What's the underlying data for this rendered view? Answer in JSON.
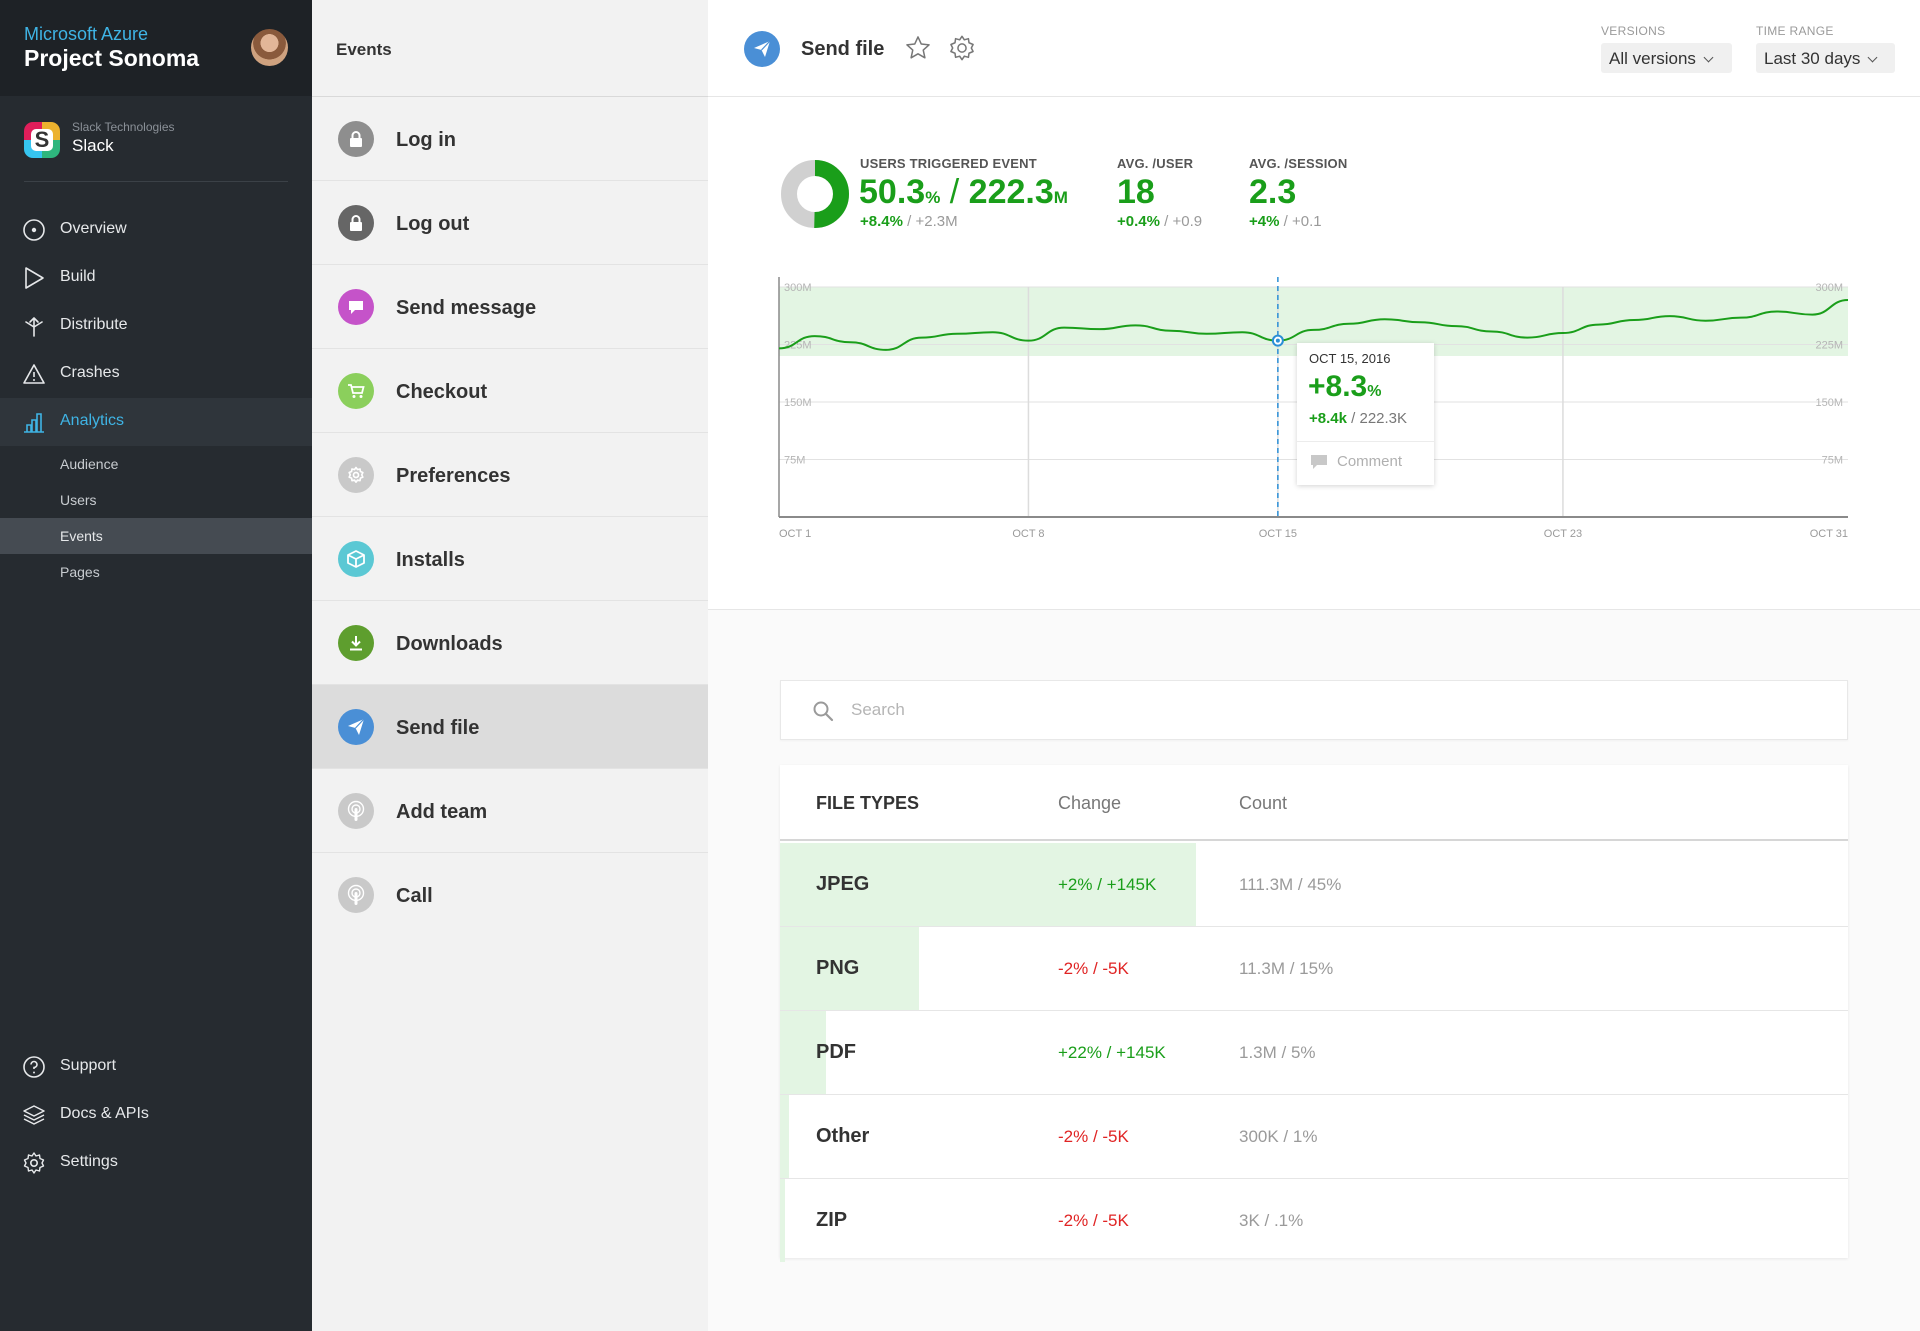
{
  "sidebar": {
    "brand_sub": "Microsoft Azure",
    "brand_title": "Project Sonoma",
    "app": {
      "org": "Slack Technologies",
      "name": "Slack"
    },
    "nav": [
      {
        "label": "Overview",
        "icon": "overview-icon"
      },
      {
        "label": "Build",
        "icon": "build-icon"
      },
      {
        "label": "Distribute",
        "icon": "distribute-icon"
      },
      {
        "label": "Crashes",
        "icon": "crashes-icon"
      },
      {
        "label": "Analytics",
        "icon": "analytics-icon",
        "active": true
      }
    ],
    "analytics_sub": [
      {
        "label": "Audience"
      },
      {
        "label": "Users"
      },
      {
        "label": "Events",
        "active": true
      },
      {
        "label": "Pages"
      }
    ],
    "footer": [
      {
        "label": "Support",
        "icon": "support-icon"
      },
      {
        "label": "Docs & APIs",
        "icon": "docs-icon"
      },
      {
        "label": "Settings",
        "icon": "settings-icon"
      }
    ],
    "accent_color": "#3fb4e5"
  },
  "events": {
    "title": "Events",
    "items": [
      {
        "label": "Log in",
        "icon": "lock-icon",
        "color": "#8e8e8e"
      },
      {
        "label": "Log out",
        "icon": "lock-icon",
        "color": "#666666"
      },
      {
        "label": "Send message",
        "icon": "message-icon",
        "color": "#c553c9"
      },
      {
        "label": "Checkout",
        "icon": "cart-icon",
        "color": "#8bcf5c"
      },
      {
        "label": "Preferences",
        "icon": "gear-icon",
        "color": "#c9c9c9"
      },
      {
        "label": "Installs",
        "icon": "box-icon",
        "color": "#5bc8d4"
      },
      {
        "label": "Downloads",
        "icon": "download-icon",
        "color": "#5e9e2e"
      },
      {
        "label": "Send file",
        "icon": "send-icon",
        "color": "#4a8fd6",
        "selected": true
      },
      {
        "label": "Add team",
        "icon": "touch-icon",
        "color": "#c9c9c9"
      },
      {
        "label": "Call",
        "icon": "touch-icon",
        "color": "#c9c9c9"
      }
    ]
  },
  "header": {
    "title": "Send file",
    "versions_label": "VERSIONS",
    "versions_value": "All versions",
    "time_label": "TIME RANGE",
    "time_value": "Last 30 days"
  },
  "stats": {
    "users_triggered": {
      "label": "USERS TRIGGERED EVENT",
      "pct": "50.3",
      "pct_unit": "%",
      "slash": "/",
      "total": "222.3",
      "total_unit": "M",
      "delta_up": "+8.4%",
      "delta_sep": "/",
      "delta_rest": "+2.3M",
      "ring_fraction": 0.503
    },
    "avg_user": {
      "label": "AVG. /USER",
      "value": "18",
      "delta_up": "+0.4%",
      "delta_sep": "/",
      "delta_rest": "+0.9"
    },
    "avg_session": {
      "label": "AVG. /SESSION",
      "value": "2.3",
      "delta_up": "+4%",
      "delta_sep": "/",
      "delta_rest": "+0.1"
    }
  },
  "chart_data": {
    "type": "line",
    "y_ticks": [
      "300M",
      "225M",
      "150M",
      "75M"
    ],
    "y_values": [
      300,
      225,
      150,
      75
    ],
    "ylim": [
      0,
      300
    ],
    "x_ticks": [
      "OCT 1",
      "OCT 8",
      "OCT 15",
      "OCT 23",
      "OCT 31"
    ],
    "x_tick_days": [
      1,
      8,
      15,
      23,
      31
    ],
    "band": [
      210,
      300
    ],
    "series": [
      {
        "x": [
          1,
          2,
          3,
          4,
          5,
          6,
          7,
          8,
          9,
          10,
          11,
          12,
          13,
          14,
          15,
          16,
          17,
          18,
          19,
          20,
          21,
          22,
          23,
          24,
          25,
          26,
          27,
          28,
          29,
          30,
          31
        ],
        "y": [
          220,
          236,
          228,
          218,
          234,
          239,
          241,
          230,
          247,
          245,
          250,
          243,
          239,
          241,
          230,
          244,
          252,
          258,
          254,
          249,
          242,
          234,
          240,
          251,
          257,
          262,
          256,
          260,
          268,
          264,
          283
        ]
      }
    ],
    "highlight": {
      "x": 15,
      "date": "OCT 15, 2016",
      "pct": "+8.3",
      "pct_unit": "%",
      "delta_up": "+8.4k",
      "delta_sep": "/",
      "delta_rest": "222.3K",
      "comment_label": "Comment"
    },
    "line_color": "#1a9e1a",
    "band_color": "#e3f5e3"
  },
  "search": {
    "placeholder": "Search"
  },
  "file_types": {
    "headers": [
      "FILE TYPES",
      "Change",
      "Count"
    ],
    "rows": [
      {
        "name": "JPEG",
        "change": "+2% / +145K",
        "trend": "up",
        "count": "111.3M / 45%",
        "share": 0.45
      },
      {
        "name": "PNG",
        "change": "-2% / -5K",
        "trend": "down",
        "count": "11.3M / 15%",
        "share": 0.15
      },
      {
        "name": "PDF",
        "change": "+22% / +145K",
        "trend": "up",
        "count": "1.3M / 5%",
        "share": 0.05
      },
      {
        "name": "Other",
        "change": "-2% / -5K",
        "trend": "down",
        "count": "300K / 1%",
        "share": 0.01
      },
      {
        "name": "ZIP",
        "change": "-2% / -5K",
        "trend": "down",
        "count": "3K / .1%",
        "share": 0.001
      }
    ]
  }
}
